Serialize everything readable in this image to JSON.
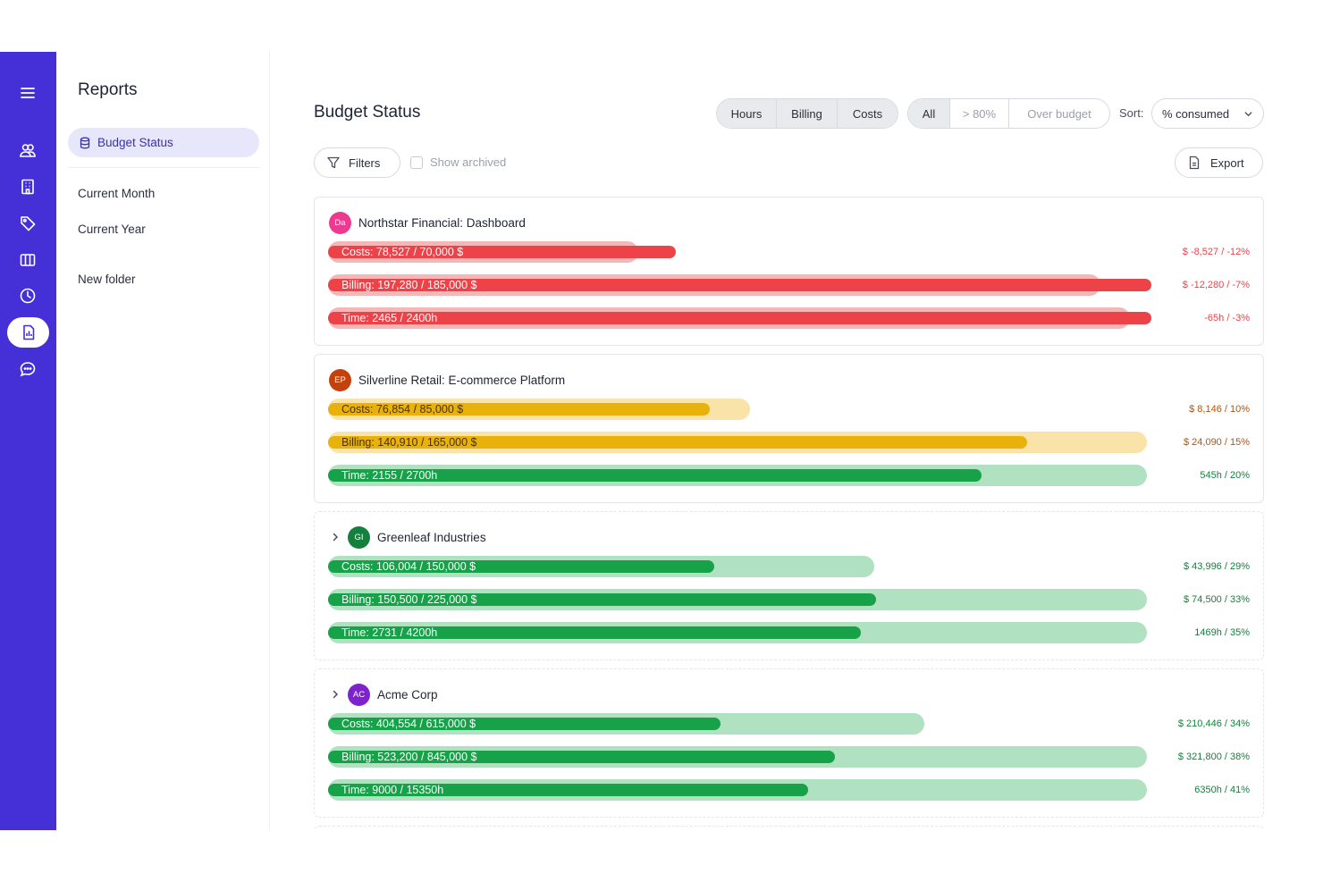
{
  "colors": {
    "rail": "#4530d8",
    "over": "#ee4249",
    "over_track": "#f5b6b8",
    "warn": "#e8b10c",
    "warn_track": "#f9e3a8",
    "ok": "#17a148",
    "ok_track": "#b0e1c0"
  },
  "rail": {
    "icons": [
      "menu-icon",
      "users-icon",
      "building-icon",
      "tag-icon",
      "columns-icon",
      "clock-icon",
      "report-icon",
      "chat-icon"
    ],
    "active": "report-icon"
  },
  "sidebar": {
    "title": "Reports",
    "active_item": "Budget Status",
    "items": [
      "Current Month",
      "Current Year"
    ],
    "folder": "New folder"
  },
  "main": {
    "title": "Budget Status",
    "type_toggle": [
      "Hours",
      "Billing",
      "Costs"
    ],
    "filter_toggle": [
      "All",
      "> 80%",
      "Over budget"
    ],
    "sort_label": "Sort:",
    "sort_value": "% consumed",
    "filters_label": "Filters",
    "show_archived_label": "Show archived",
    "export_label": "Export"
  },
  "projects": [
    {
      "name": "Northstar Financial: Dashboard",
      "initials": "Da",
      "avatar_color": "#ec3a8f",
      "expandable": false,
      "bars": [
        {
          "label": "Costs: 78,527 / 70,000 $",
          "used": 78527,
          "budget": 70000,
          "status": "over",
          "delta": "$ -8,527 / -12%"
        },
        {
          "label": "Billing: 197,280 / 185,000 $",
          "used": 197280,
          "budget": 185000,
          "status": "over",
          "delta": "$ -12,280 / -7%"
        },
        {
          "label": "Time: 2465 / 2400h",
          "used": 2465,
          "budget": 2400,
          "status": "over",
          "delta": "-65h / -3%"
        }
      ]
    },
    {
      "name": "Silverline Retail: E-commerce Platform",
      "initials": "EP",
      "avatar_color": "#c2410c",
      "expandable": false,
      "bars": [
        {
          "label": "Costs: 76,854 / 85,000 $",
          "used": 76854,
          "budget": 85000,
          "status": "warn",
          "delta": "$ 8,146 / 10%"
        },
        {
          "label": "Billing: 140,910 / 165,000 $",
          "used": 140910,
          "budget": 165000,
          "status": "warn",
          "delta": "$ 24,090 / 15%"
        },
        {
          "label": "Time: 2155 / 2700h",
          "used": 2155,
          "budget": 2700,
          "status": "ok",
          "delta": "545h / 20%"
        }
      ]
    },
    {
      "name": "Greenleaf Industries",
      "initials": "GI",
      "avatar_color": "#15803d",
      "expandable": true,
      "bars": [
        {
          "label": "Costs: 106,004 / 150,000 $",
          "used": 106004,
          "budget": 150000,
          "status": "ok",
          "delta": "$ 43,996 / 29%"
        },
        {
          "label": "Billing: 150,500 / 225,000 $",
          "used": 150500,
          "budget": 225000,
          "status": "ok",
          "delta": "$ 74,500 / 33%"
        },
        {
          "label": "Time: 2731 / 4200h",
          "used": 2731,
          "budget": 4200,
          "status": "ok",
          "delta": "1469h / 35%"
        }
      ]
    },
    {
      "name": "Acme Corp",
      "initials": "AC",
      "avatar_color": "#7e22ce",
      "expandable": true,
      "bars": [
        {
          "label": "Costs: 404,554 / 615,000 $",
          "used": 404554,
          "budget": 615000,
          "status": "ok",
          "delta": "$ 210,446 / 34%"
        },
        {
          "label": "Billing: 523,200 / 845,000 $",
          "used": 523200,
          "budget": 845000,
          "status": "ok",
          "delta": "$ 321,800 / 38%"
        },
        {
          "label": "Time: 9000 / 15350h",
          "used": 9000,
          "budget": 15350,
          "status": "ok",
          "delta": "6350h / 41%"
        }
      ]
    }
  ]
}
